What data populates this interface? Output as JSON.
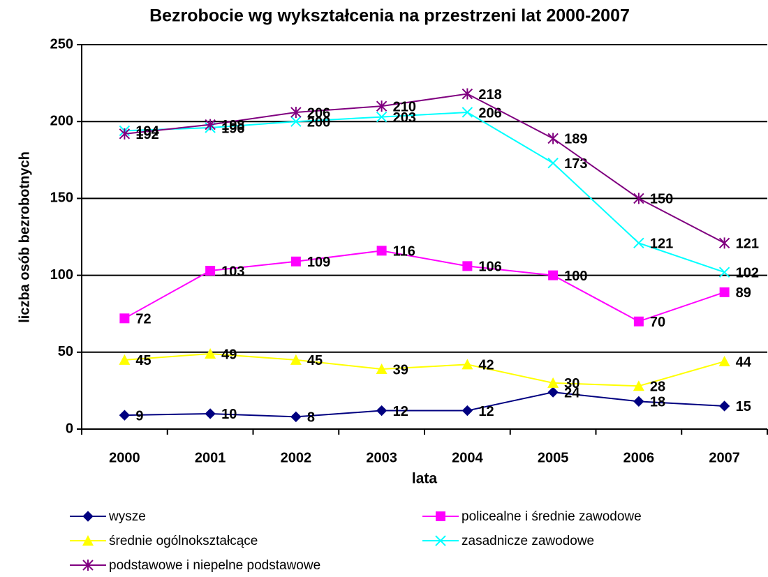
{
  "chart_data": {
    "type": "line",
    "title": "Bezrobocie wg wykształcenia na przestrzeni lat 2000-2007",
    "x_label": "lata",
    "y_label": "liczba osób bezrobotnych",
    "categories": [
      "2000",
      "2001",
      "2002",
      "2003",
      "2004",
      "2005",
      "2006",
      "2007"
    ],
    "series": [
      {
        "name": "wysze",
        "color": "#000080",
        "marker": "diamond",
        "values": [
          9,
          10,
          8,
          12,
          12,
          24,
          18,
          15
        ]
      },
      {
        "name": "policealne i średnie zawodowe",
        "color": "#ff00ff",
        "marker": "square",
        "values": [
          72,
          103,
          109,
          116,
          106,
          100,
          70,
          89
        ]
      },
      {
        "name": "średnie ogólnokształcące",
        "color": "#ffff00",
        "marker": "triangle",
        "values": [
          45,
          49,
          45,
          39,
          42,
          30,
          28,
          44
        ]
      },
      {
        "name": "zasadnicze zawodowe",
        "color": "#00ffff",
        "marker": "x",
        "values": [
          194,
          196,
          200,
          203,
          206,
          173,
          121,
          102
        ]
      },
      {
        "name": "podstawowe i niepelne podstawowe",
        "color": "#800080",
        "marker": "asterisk",
        "values": [
          192,
          198,
          206,
          210,
          218,
          189,
          150,
          121
        ]
      }
    ],
    "ylim": [
      0,
      250
    ],
    "yticks": [
      0,
      50,
      100,
      150,
      200,
      250
    ],
    "grid": true,
    "legend": "bottom"
  }
}
